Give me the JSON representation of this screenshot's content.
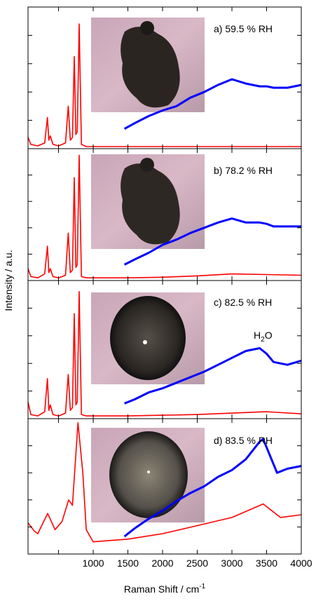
{
  "ylabel": "Intensity / a.u.",
  "chart_data": [
    {
      "type": "line",
      "label": "a) 59.5 % RH",
      "xlim": [
        60,
        4000
      ],
      "xticks": [
        500,
        1000,
        1500,
        2000,
        2500,
        3000,
        3500,
        4000
      ],
      "ylim": [
        0,
        100
      ],
      "yticks": [
        0,
        20,
        40,
        60,
        80
      ],
      "series": [
        {
          "color": "#ff0000",
          "x": [
            60,
            100,
            200,
            300,
            340,
            360,
            380,
            420,
            500,
            600,
            640,
            670,
            700,
            727,
            750,
            770,
            797,
            830,
            900,
            1000,
            1500,
            2000,
            2500,
            3000,
            3500,
            4000
          ],
          "values": [
            8,
            3,
            2,
            4,
            22,
            6,
            9,
            3,
            2,
            4,
            30,
            6,
            8,
            65,
            10,
            12,
            88,
            3,
            1.5,
            1.5,
            1.5,
            1.5,
            1.5,
            1.5,
            1.5,
            1.5
          ]
        },
        {
          "color": "#0000ff",
          "x": [
            1450,
            1600,
            1800,
            2000,
            2200,
            2400,
            2600,
            2800,
            3000,
            3200,
            3400,
            3500,
            3600,
            3800,
            4000
          ],
          "values": [
            14,
            18,
            23,
            27,
            30,
            36,
            40,
            45,
            49,
            46,
            44,
            44,
            43,
            43,
            45
          ]
        }
      ]
    },
    {
      "type": "line",
      "label": "b) 78.2 % RH",
      "xlim": [
        60,
        4000
      ],
      "xticks": [
        500,
        1000,
        1500,
        2000,
        2500,
        3000,
        3500,
        4000
      ],
      "ylim": [
        0,
        100
      ],
      "yticks": [
        0,
        20,
        40,
        60,
        80
      ],
      "series": [
        {
          "color": "#ff0000",
          "x": [
            60,
            100,
            200,
            300,
            340,
            360,
            380,
            420,
            500,
            600,
            640,
            670,
            700,
            727,
            750,
            770,
            797,
            830,
            900,
            1000,
            1500,
            2000,
            2500,
            3000,
            3500,
            4000
          ],
          "values": [
            9,
            3,
            2,
            5,
            26,
            6,
            9,
            3,
            2,
            4,
            36,
            6,
            8,
            78,
            10,
            12,
            95,
            3,
            2,
            2,
            2,
            2.5,
            3.5,
            5,
            4.5,
            4
          ]
        },
        {
          "color": "#0000ff",
          "x": [
            1450,
            1600,
            1800,
            2000,
            2200,
            2400,
            2600,
            2800,
            3000,
            3200,
            3400,
            3500,
            3600,
            3800,
            4000
          ],
          "values": [
            12,
            16,
            21,
            27,
            31,
            36,
            40,
            44,
            47,
            44,
            44,
            43,
            41,
            41,
            41
          ]
        }
      ]
    },
    {
      "type": "line",
      "label": "c) 82.5 % RH",
      "annotation": [
        "H",
        "2",
        "O"
      ],
      "xlim": [
        60,
        4000
      ],
      "xticks": [
        500,
        1000,
        1500,
        2000,
        2500,
        3000,
        3500,
        4000
      ],
      "ylim": [
        0,
        100
      ],
      "yticks": [
        0,
        20,
        40,
        60,
        80
      ],
      "series": [
        {
          "color": "#ff0000",
          "x": [
            60,
            100,
            200,
            300,
            340,
            360,
            380,
            420,
            500,
            600,
            640,
            670,
            700,
            727,
            750,
            770,
            797,
            830,
            900,
            1000,
            1500,
            2000,
            2500,
            3000,
            3500,
            4000
          ],
          "values": [
            12,
            3,
            2,
            5,
            29,
            6,
            10,
            3,
            2,
            4,
            32,
            6,
            8,
            76,
            10,
            12,
            92,
            3,
            2,
            2,
            2,
            2.5,
            3,
            4,
            5,
            3.5
          ]
        },
        {
          "color": "#0000ff",
          "x": [
            1450,
            1600,
            1800,
            2000,
            2200,
            2400,
            2600,
            2800,
            3000,
            3200,
            3400,
            3500,
            3600,
            3800,
            4000
          ],
          "values": [
            11,
            14,
            19,
            22,
            26,
            30,
            34,
            39,
            44,
            49,
            51,
            47,
            41,
            39,
            42
          ]
        }
      ]
    },
    {
      "type": "line",
      "label": "d) 83.5 % RH",
      "xlabel": "Raman Shift / cm",
      "xlabel_sup": "-1",
      "xlim": [
        60,
        4000
      ],
      "xticks": [
        500,
        1000,
        1500,
        2000,
        2500,
        3000,
        3500,
        4000
      ],
      "ylim": [
        0,
        100
      ],
      "yticks": [
        0,
        20,
        40,
        60,
        80
      ],
      "series": [
        {
          "color": "#ff0000",
          "x": [
            60,
            150,
            200,
            343,
            450,
            550,
            646,
            700,
            780,
            850,
            900,
            1000,
            1500,
            2000,
            2500,
            3000,
            3450,
            3700,
            4000
          ],
          "values": [
            23,
            17,
            15,
            30,
            18,
            24,
            40,
            36,
            97,
            60,
            18,
            9,
            11,
            15,
            21,
            27,
            37,
            27,
            29
          ]
        },
        {
          "color": "#0000ff",
          "x": [
            1450,
            1600,
            1800,
            2000,
            2200,
            2400,
            2600,
            2800,
            3000,
            3200,
            3400,
            3450,
            3650,
            3800,
            4000
          ],
          "values": [
            13,
            19,
            26,
            32,
            39,
            45,
            50,
            57,
            62,
            70,
            83,
            85,
            60,
            63,
            65
          ]
        }
      ]
    }
  ]
}
